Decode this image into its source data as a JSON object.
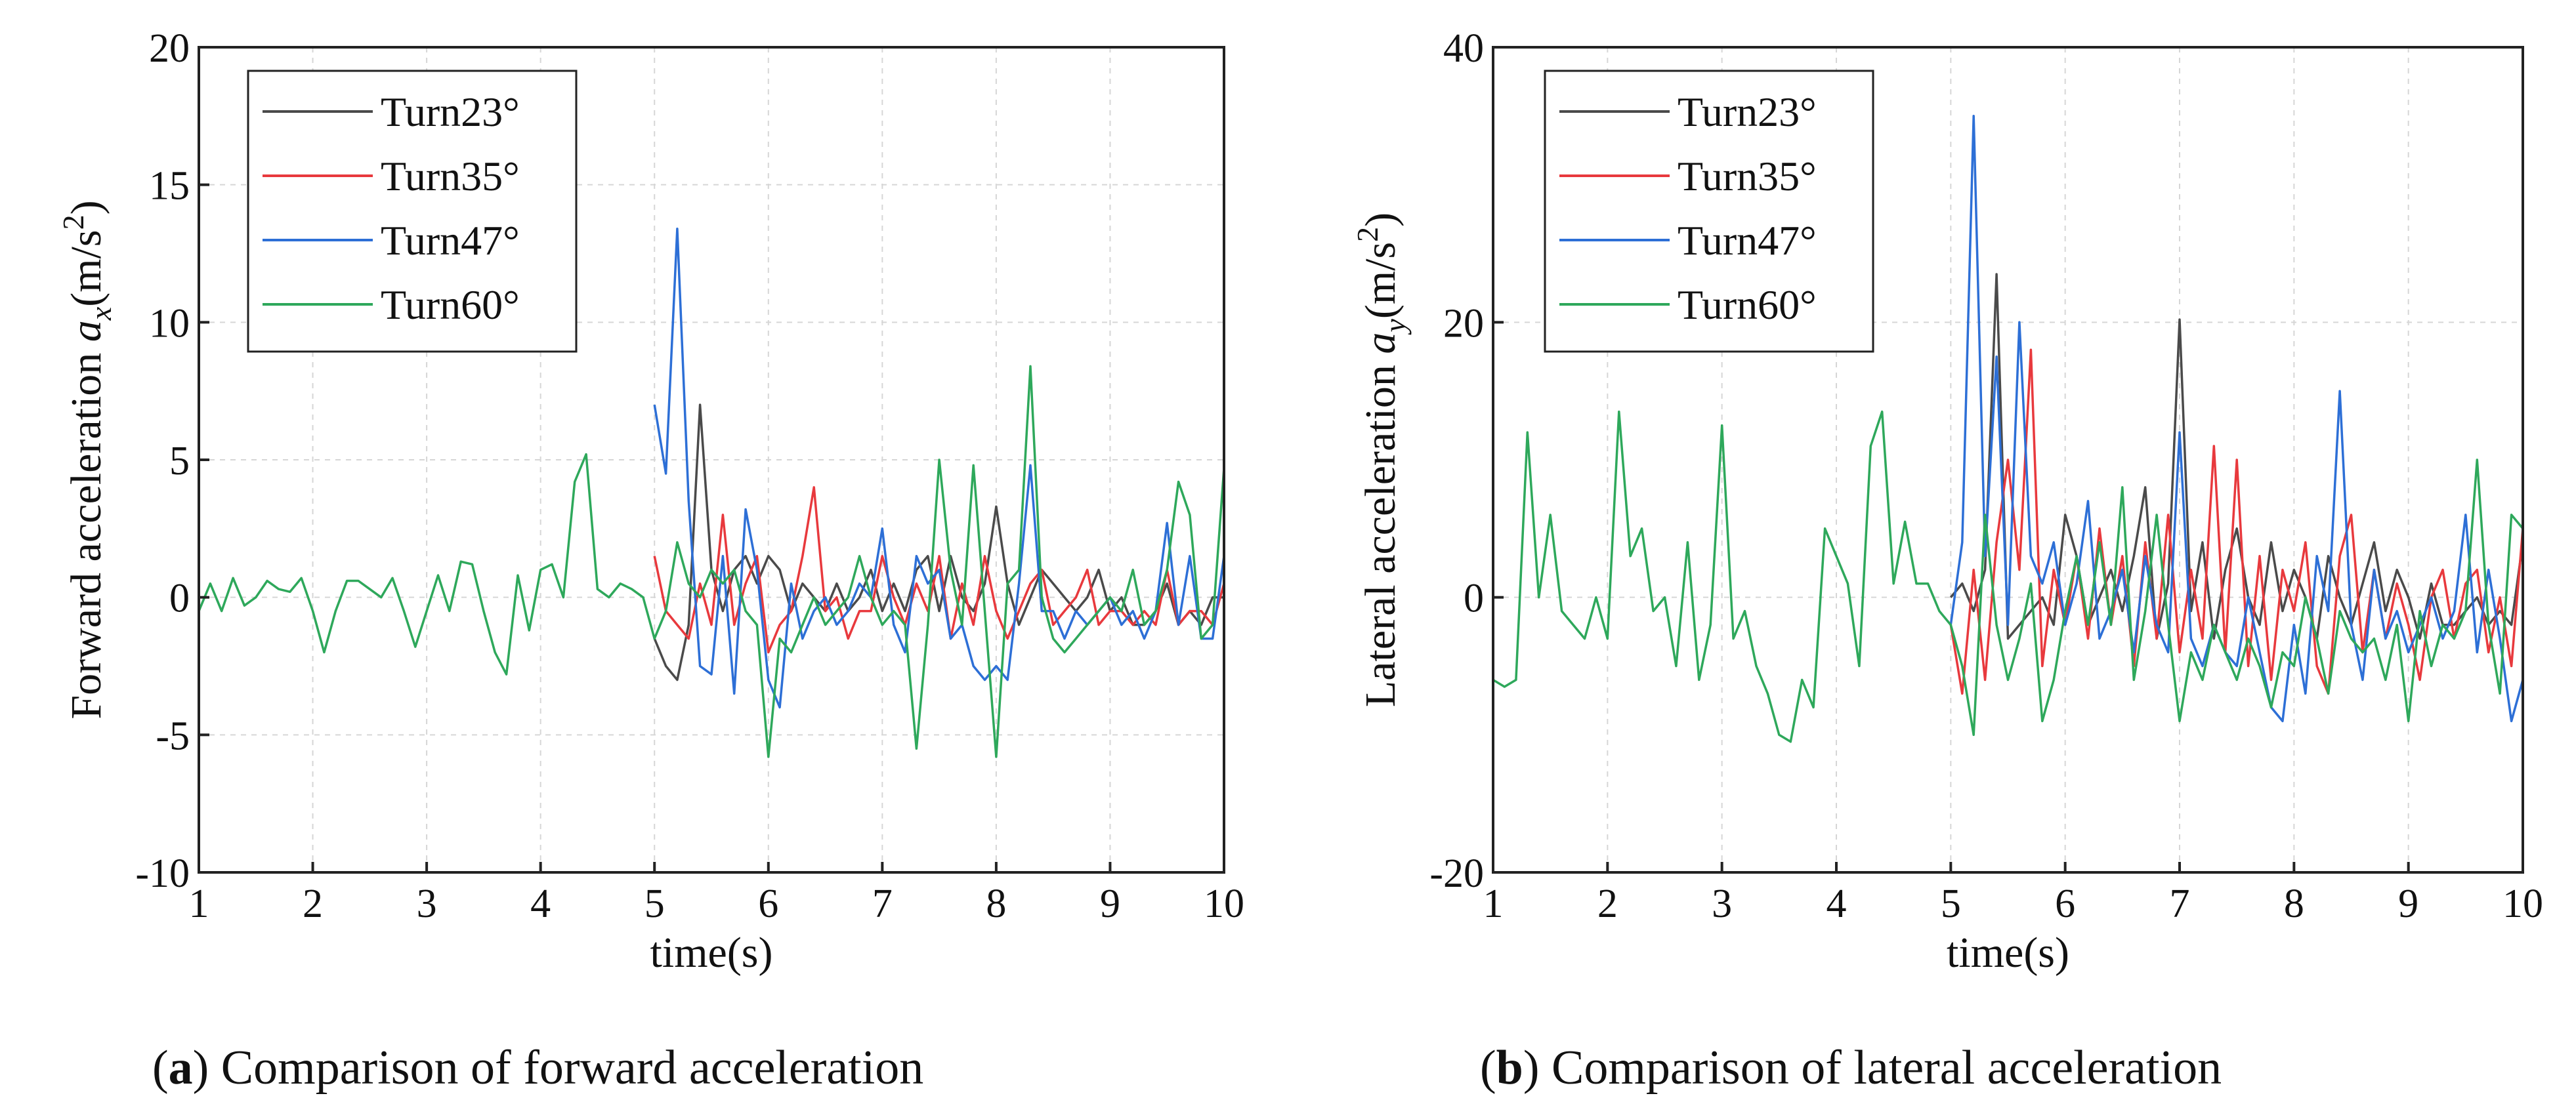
{
  "chart_data": [
    {
      "type": "line",
      "caption_letter": "a",
      "caption_text": ") Comparison of forward acceleration",
      "ylabel_prefix": "Forward acceleration ",
      "ylabel_var": "a",
      "ylabel_sub": "x",
      "ylabel_unit": "(m/s",
      "ylabel_exp": "2",
      "ylabel_close": ")",
      "xlabel": "time(s)",
      "xlim": [
        1,
        10
      ],
      "ylim": [
        -10,
        20
      ],
      "xticks": [
        "1",
        "2",
        "3",
        "4",
        "5",
        "6",
        "7",
        "8",
        "9",
        "10"
      ],
      "yticks": [
        "-10",
        "-5",
        "0",
        "5",
        "10",
        "15",
        "20"
      ],
      "grid": true,
      "legend_position": "top-left",
      "series": [
        {
          "name": "Turn23°",
          "color": "#4a4a4a",
          "x": [
            5.0,
            5.1,
            5.2,
            5.3,
            5.4,
            5.5,
            5.6,
            5.7,
            5.8,
            5.9,
            6.0,
            6.1,
            6.2,
            6.3,
            6.4,
            6.5,
            6.6,
            6.7,
            6.8,
            6.9,
            7.0,
            7.1,
            7.2,
            7.3,
            7.4,
            7.5,
            7.6,
            7.7,
            7.8,
            7.9,
            8.0,
            8.1,
            8.2,
            8.3,
            8.4,
            8.5,
            8.6,
            8.7,
            8.8,
            8.9,
            9.0,
            9.1,
            9.2,
            9.3,
            9.4,
            9.5,
            9.6,
            9.7,
            9.8,
            9.9,
            10.0
          ],
          "y": [
            -1.5,
            -2.5,
            -3.0,
            -1.0,
            7.0,
            1.0,
            -0.5,
            1.0,
            1.5,
            0.5,
            1.5,
            1.0,
            -0.5,
            0.5,
            0.0,
            -0.5,
            0.5,
            -0.5,
            0.0,
            1.0,
            -0.5,
            0.5,
            -0.5,
            1.0,
            1.5,
            -0.5,
            1.5,
            0.0,
            -0.5,
            0.5,
            3.3,
            0.5,
            -1.0,
            0.0,
            1.0,
            0.5,
            0.0,
            -0.5,
            0.0,
            1.0,
            -0.5,
            0.0,
            -1.0,
            -1.0,
            -0.5,
            0.5,
            -1.0,
            -0.5,
            -1.0,
            0.0,
            0.0
          ]
        },
        {
          "name": "Turn35°",
          "color": "#e8393d",
          "x": [
            5.0,
            5.1,
            5.2,
            5.3,
            5.4,
            5.5,
            5.6,
            5.7,
            5.8,
            5.9,
            6.0,
            6.1,
            6.2,
            6.3,
            6.4,
            6.5,
            6.6,
            6.7,
            6.8,
            6.9,
            7.0,
            7.1,
            7.2,
            7.3,
            7.4,
            7.5,
            7.6,
            7.7,
            7.8,
            7.9,
            8.0,
            8.1,
            8.2,
            8.3,
            8.4,
            8.5,
            8.6,
            8.7,
            8.8,
            8.9,
            9.0,
            9.1,
            9.2,
            9.3,
            9.4,
            9.5,
            9.6,
            9.7,
            9.8,
            9.9,
            10.0
          ],
          "y": [
            1.5,
            -0.5,
            -1.0,
            -1.5,
            0.5,
            -1.0,
            3.0,
            -1.0,
            0.5,
            1.5,
            -2.0,
            -1.0,
            -0.5,
            1.5,
            4.0,
            -0.5,
            0.0,
            -1.5,
            -0.5,
            -0.5,
            1.5,
            0.0,
            -1.0,
            0.5,
            -0.5,
            1.5,
            -1.5,
            0.5,
            -1.0,
            1.5,
            -0.5,
            -1.5,
            -0.5,
            0.5,
            1.0,
            -1.0,
            -0.5,
            0.0,
            1.0,
            -1.0,
            -0.5,
            -0.5,
            -1.0,
            -0.5,
            -1.0,
            1.0,
            -1.0,
            -0.5,
            -0.5,
            -1.0,
            0.5
          ]
        },
        {
          "name": "Turn47°",
          "color": "#2d6fd6",
          "x": [
            5.0,
            5.1,
            5.2,
            5.3,
            5.4,
            5.5,
            5.6,
            5.7,
            5.8,
            5.9,
            6.0,
            6.1,
            6.2,
            6.3,
            6.4,
            6.5,
            6.6,
            6.7,
            6.8,
            6.9,
            7.0,
            7.1,
            7.2,
            7.3,
            7.4,
            7.5,
            7.6,
            7.7,
            7.8,
            7.9,
            8.0,
            8.1,
            8.2,
            8.3,
            8.4,
            8.5,
            8.6,
            8.7,
            8.8,
            8.9,
            9.0,
            9.1,
            9.2,
            9.3,
            9.4,
            9.5,
            9.6,
            9.7,
            9.8,
            9.9,
            10.0
          ],
          "y": [
            7.0,
            4.5,
            13.4,
            3.5,
            -2.5,
            -2.8,
            1.5,
            -3.5,
            3.2,
            1.0,
            -3.0,
            -4.0,
            0.5,
            -1.5,
            -0.5,
            0.0,
            -1.0,
            -0.5,
            0.5,
            0.0,
            2.5,
            -1.0,
            -2.0,
            1.5,
            0.5,
            1.0,
            -1.5,
            -1.0,
            -2.5,
            -3.0,
            -2.5,
            -3.0,
            0.5,
            4.8,
            -0.5,
            -0.5,
            -1.5,
            -0.5,
            -1.0,
            -0.5,
            0.0,
            -1.0,
            -0.5,
            -1.5,
            -0.5,
            2.7,
            -1.0,
            1.5,
            -1.5,
            -1.5,
            1.5
          ]
        },
        {
          "name": "Turn60°",
          "color": "#2ea85b",
          "x": [
            1.0,
            1.1,
            1.2,
            1.3,
            1.4,
            1.5,
            1.6,
            1.7,
            1.8,
            1.9,
            2.0,
            2.1,
            2.2,
            2.3,
            2.4,
            2.5,
            2.6,
            2.7,
            2.8,
            2.9,
            3.0,
            3.1,
            3.2,
            3.3,
            3.4,
            3.5,
            3.6,
            3.7,
            3.8,
            3.9,
            4.0,
            4.1,
            4.2,
            4.3,
            4.4,
            4.5,
            4.6,
            4.7,
            4.8,
            4.9,
            5.0,
            5.1,
            5.2,
            5.3,
            5.4,
            5.5,
            5.6,
            5.7,
            5.8,
            5.9,
            6.0,
            6.1,
            6.2,
            6.3,
            6.4,
            6.5,
            6.6,
            6.7,
            6.8,
            6.9,
            7.0,
            7.1,
            7.2,
            7.3,
            7.4,
            7.5,
            7.6,
            7.7,
            7.8,
            7.9,
            8.0,
            8.1,
            8.2,
            8.3,
            8.4,
            8.5,
            8.6,
            8.7,
            8.8,
            8.9,
            9.0,
            9.1,
            9.2,
            9.3,
            9.4,
            9.5,
            9.6,
            9.7,
            9.8,
            9.9,
            10.0
          ],
          "y": [
            -0.5,
            0.5,
            -0.5,
            0.7,
            -0.3,
            0.0,
            0.6,
            0.3,
            0.2,
            0.7,
            -0.5,
            -2.0,
            -0.5,
            0.6,
            0.6,
            0.3,
            0.0,
            0.7,
            -0.5,
            -1.8,
            -0.5,
            0.8,
            -0.5,
            1.3,
            1.2,
            -0.5,
            -2.0,
            -2.8,
            0.8,
            -1.2,
            1.0,
            1.2,
            0.0,
            4.2,
            5.2,
            0.3,
            0.0,
            0.5,
            0.3,
            0.0,
            -1.5,
            -0.5,
            2.0,
            0.5,
            0.0,
            1.0,
            0.5,
            1.0,
            -0.5,
            -1.0,
            -5.8,
            -1.5,
            -2.0,
            -1.0,
            0.0,
            -1.0,
            -0.5,
            0.0,
            1.5,
            0.0,
            -1.0,
            -0.5,
            -1.0,
            -5.5,
            -1.0,
            5.0,
            1.0,
            -1.0,
            4.8,
            -0.5,
            -5.8,
            0.5,
            1.0,
            8.4,
            0.0,
            -1.5,
            -2.0,
            -1.5,
            -1.0,
            -0.5,
            0.0,
            -0.5,
            1.0,
            -1.0,
            -0.5,
            1.0,
            4.2,
            3.0,
            -1.5,
            -1.0,
            4.7
          ]
        }
      ]
    },
    {
      "type": "line",
      "caption_letter": "b",
      "caption_text": ") Comparison of lateral acceleration",
      "ylabel_prefix": "Lateral acceleration ",
      "ylabel_var": "a",
      "ylabel_sub": "y",
      "ylabel_unit": "(m/s",
      "ylabel_exp": "2",
      "ylabel_close": ")",
      "xlabel": "time(s)",
      "xlim": [
        1,
        10
      ],
      "ylim": [
        -20,
        40
      ],
      "xticks": [
        "1",
        "2",
        "3",
        "4",
        "5",
        "6",
        "7",
        "8",
        "9",
        "10"
      ],
      "yticks": [
        "-20",
        "0",
        "20",
        "40"
      ],
      "grid": true,
      "legend_position": "top-left",
      "series": [
        {
          "name": "Turn23°",
          "color": "#4a4a4a",
          "x": [
            5.0,
            5.1,
            5.2,
            5.3,
            5.4,
            5.5,
            5.6,
            5.7,
            5.8,
            5.9,
            6.0,
            6.1,
            6.2,
            6.3,
            6.4,
            6.5,
            6.6,
            6.7,
            6.8,
            6.9,
            7.0,
            7.1,
            7.2,
            7.3,
            7.4,
            7.5,
            7.6,
            7.7,
            7.8,
            7.9,
            8.0,
            8.1,
            8.2,
            8.3,
            8.4,
            8.5,
            8.6,
            8.7,
            8.8,
            8.9,
            9.0,
            9.1,
            9.2,
            9.3,
            9.4,
            9.5,
            9.6,
            9.7,
            9.8,
            9.9,
            10.0
          ],
          "y": [
            0,
            1,
            -1,
            2,
            23.5,
            -3,
            -2,
            -1,
            0,
            -2,
            6,
            3,
            -2,
            0,
            2,
            -1,
            3,
            8,
            -3,
            1,
            20.2,
            -1,
            4,
            -3,
            2,
            5,
            0,
            -2,
            4,
            -1,
            2,
            0,
            -3,
            3,
            0,
            -2,
            1,
            4,
            -1,
            2,
            0,
            -3,
            1,
            -2,
            -2,
            -1,
            0,
            -2,
            -1,
            -2,
            4
          ]
        },
        {
          "name": "Turn35°",
          "color": "#e8393d",
          "x": [
            5.0,
            5.1,
            5.2,
            5.3,
            5.4,
            5.5,
            5.6,
            5.7,
            5.8,
            5.9,
            6.0,
            6.1,
            6.2,
            6.3,
            6.4,
            6.5,
            6.6,
            6.7,
            6.8,
            6.9,
            7.0,
            7.1,
            7.2,
            7.3,
            7.4,
            7.5,
            7.6,
            7.7,
            7.8,
            7.9,
            8.0,
            8.1,
            8.2,
            8.3,
            8.4,
            8.5,
            8.6,
            8.7,
            8.8,
            8.9,
            9.0,
            9.1,
            9.2,
            9.3,
            9.4,
            9.5,
            9.6,
            9.7,
            9.8,
            9.9,
            10.0
          ],
          "y": [
            -2,
            -7,
            2,
            -6,
            4,
            10,
            2,
            18,
            -5,
            2,
            -2,
            3,
            -3,
            5,
            -2,
            3,
            -5,
            4,
            -3,
            6,
            -4,
            2,
            -3,
            11,
            -4,
            10,
            -5,
            3,
            -6,
            2,
            -1,
            4,
            -5,
            -7,
            3,
            6,
            -4,
            2,
            -3,
            1,
            -2,
            -6,
            0,
            2,
            -3,
            1,
            2,
            -4,
            0,
            -5,
            5
          ]
        },
        {
          "name": "Turn47°",
          "color": "#2d6fd6",
          "x": [
            5.0,
            5.1,
            5.2,
            5.3,
            5.4,
            5.5,
            5.6,
            5.7,
            5.8,
            5.9,
            6.0,
            6.1,
            6.2,
            6.3,
            6.4,
            6.5,
            6.6,
            6.7,
            6.8,
            6.9,
            7.0,
            7.1,
            7.2,
            7.3,
            7.4,
            7.5,
            7.6,
            7.7,
            7.8,
            7.9,
            8.0,
            8.1,
            8.2,
            8.3,
            8.4,
            8.5,
            8.6,
            8.7,
            8.8,
            8.9,
            9.0,
            9.1,
            9.2,
            9.3,
            9.4,
            9.5,
            9.6,
            9.7,
            9.8,
            9.9,
            10.0
          ],
          "y": [
            -2,
            4,
            35,
            3,
            17.5,
            -2,
            20,
            3,
            1,
            4,
            -2,
            1,
            7,
            -3,
            -1,
            2,
            -4,
            3,
            -2,
            -4,
            12,
            -3,
            -5,
            -2,
            -4,
            -5,
            0,
            -4,
            -8,
            -9,
            -2,
            -7,
            3,
            -1,
            15,
            -2,
            -6,
            2,
            -3,
            -1,
            -4,
            -2,
            0,
            -3,
            -1,
            6,
            -4,
            2,
            -3,
            -9,
            -6
          ]
        },
        {
          "name": "Turn60°",
          "color": "#2ea85b",
          "x": [
            1.0,
            1.1,
            1.2,
            1.3,
            1.4,
            1.5,
            1.6,
            1.7,
            1.8,
            1.9,
            2.0,
            2.1,
            2.2,
            2.3,
            2.4,
            2.5,
            2.6,
            2.7,
            2.8,
            2.9,
            3.0,
            3.1,
            3.2,
            3.3,
            3.4,
            3.5,
            3.6,
            3.7,
            3.8,
            3.9,
            4.0,
            4.1,
            4.2,
            4.3,
            4.4,
            4.5,
            4.6,
            4.7,
            4.8,
            4.9,
            5.0,
            5.1,
            5.2,
            5.3,
            5.4,
            5.5,
            5.6,
            5.7,
            5.8,
            5.9,
            6.0,
            6.1,
            6.2,
            6.3,
            6.4,
            6.5,
            6.6,
            6.7,
            6.8,
            6.9,
            7.0,
            7.1,
            7.2,
            7.3,
            7.4,
            7.5,
            7.6,
            7.7,
            7.8,
            7.9,
            8.0,
            8.1,
            8.2,
            8.3,
            8.4,
            8.5,
            8.6,
            8.7,
            8.8,
            8.9,
            9.0,
            9.1,
            9.2,
            9.3,
            9.4,
            9.5,
            9.6,
            9.7,
            9.8,
            9.9,
            10.0
          ],
          "y": [
            -6,
            -6.5,
            -6,
            12,
            0,
            6,
            -1,
            -2,
            -3,
            0,
            -3,
            13.5,
            3,
            5,
            -1,
            0,
            -5,
            4,
            -6,
            -2,
            12.5,
            -3,
            -1,
            -5,
            -7,
            -10,
            -10.5,
            -6,
            -8,
            5,
            3,
            1,
            -5,
            11,
            13.5,
            1,
            5.5,
            1,
            1,
            -1,
            -2,
            -5,
            -10,
            6,
            -2,
            -6,
            -3,
            1,
            -9,
            -6,
            -1,
            3,
            -2,
            4,
            -2,
            8,
            -6,
            -1,
            6,
            -2,
            -9,
            -4,
            -6,
            -2,
            -4,
            -6,
            -3,
            -5,
            -8,
            -4,
            -5,
            0,
            -3,
            -7,
            -1,
            -3,
            -4,
            -3,
            -6,
            -2,
            -9,
            -1,
            -5,
            -2,
            -3,
            -1,
            10,
            -2,
            -7,
            6,
            5
          ]
        }
      ]
    }
  ]
}
